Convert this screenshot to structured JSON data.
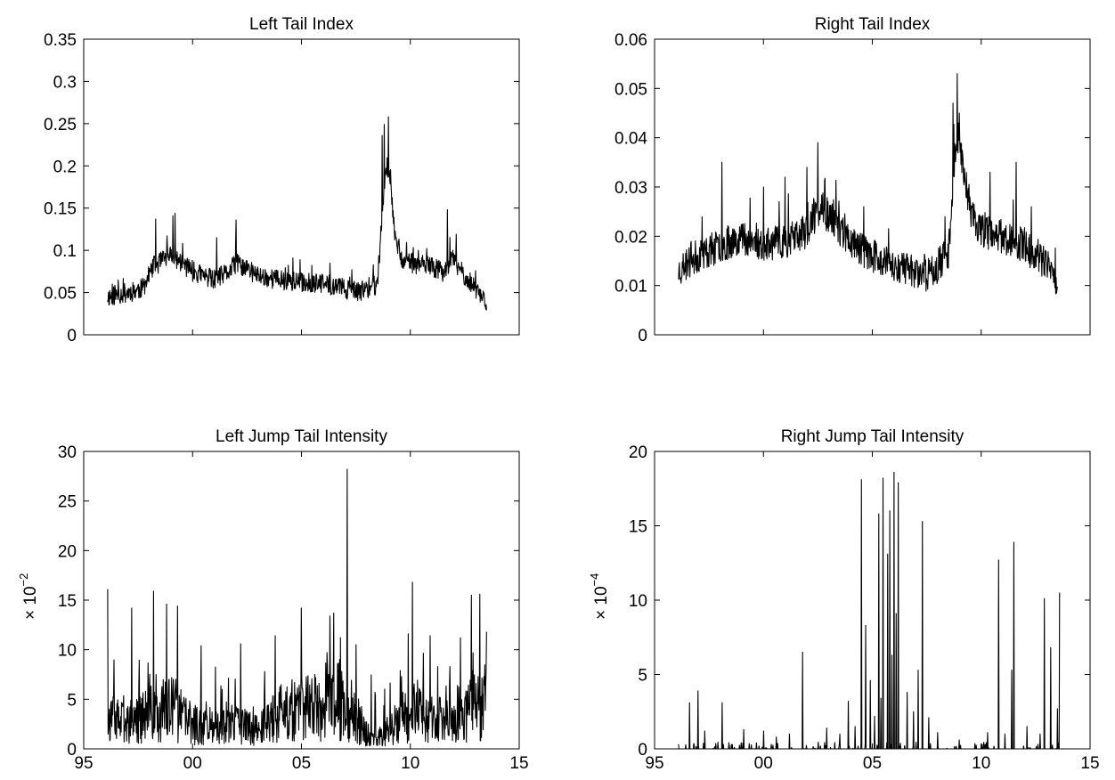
{
  "chart_data": [
    {
      "type": "line",
      "title": "Left Tail Index",
      "xlim": [
        1995,
        2015
      ],
      "ylim": [
        0,
        0.35
      ],
      "yticks": [
        0,
        0.05,
        0.1,
        0.15,
        0.2,
        0.25,
        0.3,
        0.35
      ],
      "ytick_labels": [
        "0",
        "0.05",
        "0.1",
        "0.15",
        "0.2",
        "0.25",
        "0.3",
        "0.35"
      ],
      "xtick_labels": [],
      "ylabel": "",
      "ylabel_exp": "",
      "series": [
        {
          "kind": "noisy",
          "x": [
            1996.1,
            1997.0,
            1997.7,
            1998.2,
            1999.0,
            2000.0,
            2001.0,
            2001.7,
            2002.0,
            2003.0,
            2004.0,
            2005.0,
            2006.0,
            2007.0,
            2007.6,
            2008.0,
            2008.5,
            2008.8,
            2009.0,
            2009.3,
            2009.6,
            2010.0,
            2011.0,
            2011.5,
            2011.9,
            2012.5,
            2013.0,
            2013.5
          ],
          "y": [
            0.045,
            0.05,
            0.055,
            0.08,
            0.095,
            0.075,
            0.065,
            0.075,
            0.085,
            0.07,
            0.065,
            0.062,
            0.06,
            0.055,
            0.05,
            0.055,
            0.06,
            0.18,
            0.2,
            0.12,
            0.09,
            0.085,
            0.08,
            0.075,
            0.09,
            0.07,
            0.055,
            0.04
          ],
          "noise": 0.012,
          "spikes": [
            [
              1998.3,
              0.137
            ],
            [
              1999.1,
              0.141
            ],
            [
              1999.2,
              0.144
            ],
            [
              2001.1,
              0.115
            ],
            [
              2002.0,
              0.136
            ],
            [
              2004.6,
              0.091
            ],
            [
              2006.3,
              0.085
            ],
            [
              2008.7,
              0.236
            ],
            [
              2008.8,
              0.249
            ],
            [
              2009.0,
              0.258
            ],
            [
              2011.7,
              0.148
            ],
            [
              2012.1,
              0.119
            ]
          ],
          "seed": 11
        }
      ]
    },
    {
      "type": "line",
      "title": "Right Tail Index",
      "xlim": [
        1995,
        2015
      ],
      "ylim": [
        0,
        0.06
      ],
      "yticks": [
        0,
        0.01,
        0.02,
        0.03,
        0.04,
        0.05,
        0.06
      ],
      "ytick_labels": [
        "0",
        "0.01",
        "0.02",
        "0.03",
        "0.04",
        "0.05",
        "0.06"
      ],
      "xtick_labels": [],
      "ylabel": "",
      "ylabel_exp": "",
      "series": [
        {
          "kind": "noisy",
          "x": [
            1996.1,
            1997.0,
            1998.0,
            1999.0,
            2000.0,
            2001.0,
            2002.0,
            2002.6,
            2003.0,
            2004.0,
            2005.0,
            2006.0,
            2007.0,
            2007.5,
            2008.0,
            2008.5,
            2008.8,
            2009.0,
            2009.3,
            2009.6,
            2010.0,
            2011.0,
            2012.0,
            2013.0,
            2013.5
          ],
          "y": [
            0.013,
            0.016,
            0.018,
            0.02,
            0.018,
            0.019,
            0.021,
            0.026,
            0.024,
            0.019,
            0.016,
            0.014,
            0.013,
            0.012,
            0.014,
            0.017,
            0.038,
            0.04,
            0.03,
            0.024,
            0.021,
            0.02,
            0.018,
            0.014,
            0.011
          ],
          "noise": 0.0035,
          "spikes": [
            [
              1998.1,
              0.035
            ],
            [
              2000.0,
              0.03
            ],
            [
              2001.0,
              0.032
            ],
            [
              2002.0,
              0.034
            ],
            [
              2002.5,
              0.039
            ],
            [
              2004.6,
              0.026
            ],
            [
              2008.7,
              0.047
            ],
            [
              2008.9,
              0.053
            ],
            [
              2009.0,
              0.045
            ],
            [
              2010.4,
              0.033
            ],
            [
              2011.6,
              0.035
            ],
            [
              2012.3,
              0.026
            ]
          ],
          "seed": 23
        }
      ]
    },
    {
      "type": "line",
      "title": "Left Jump Tail Intensity",
      "xlim": [
        1995,
        2015
      ],
      "ylim": [
        0,
        30
      ],
      "yticks": [
        0,
        5,
        10,
        15,
        20,
        25,
        30
      ],
      "ytick_labels": [
        "0",
        "5",
        "10",
        "15",
        "20",
        "25",
        "30"
      ],
      "xticks": [
        1995,
        2000,
        2005,
        2010,
        2015
      ],
      "xtick_labels": [
        "95",
        "00",
        "05",
        "10",
        "15"
      ],
      "ylabel": "× 10",
      "ylabel_exp": "−2",
      "series": [
        {
          "kind": "jumpy",
          "x": [
            1996.1,
            1997.0,
            1998.0,
            1999.0,
            2000.0,
            2001.0,
            2002.0,
            2003.0,
            2004.0,
            2005.0,
            2006.0,
            2007.0,
            2008.0,
            2008.5,
            2009.0,
            2010.0,
            2011.0,
            2012.0,
            2013.0,
            2013.5
          ],
          "y": [
            3.0,
            2.5,
            3.5,
            4.0,
            2.5,
            2.0,
            2.5,
            2.0,
            3.5,
            4.0,
            4.5,
            5.0,
            1.5,
            1.0,
            2.0,
            4.0,
            3.0,
            2.5,
            4.5,
            5.0
          ],
          "noise": 2.5,
          "spikes": [
            [
              1996.1,
              16.1
            ],
            [
              1997.2,
              14.2
            ],
            [
              1998.2,
              15.9
            ],
            [
              1998.8,
              14.6
            ],
            [
              1999.3,
              14.4
            ],
            [
              2000.4,
              10.4
            ],
            [
              2002.2,
              10.6
            ],
            [
              2003.8,
              11.4
            ],
            [
              2005.0,
              14.2
            ],
            [
              2006.3,
              13.4
            ],
            [
              2007.1,
              28.2
            ],
            [
              2007.5,
              10.5
            ],
            [
              2009.9,
              11.6
            ],
            [
              2010.1,
              16.8
            ],
            [
              2010.9,
              11.4
            ],
            [
              2012.3,
              11.2
            ],
            [
              2012.8,
              15.5
            ],
            [
              2013.2,
              15.6
            ],
            [
              2013.5,
              11.8
            ]
          ],
          "seed": 37
        }
      ]
    },
    {
      "type": "line",
      "title": "Right Jump Tail Intensity",
      "xlim": [
        1995,
        2015
      ],
      "ylim": [
        0,
        20
      ],
      "yticks": [
        0,
        5,
        10,
        15,
        20
      ],
      "ytick_labels": [
        "0",
        "5",
        "10",
        "15",
        "20"
      ],
      "xticks": [
        1995,
        2000,
        2005,
        2010,
        2015
      ],
      "xtick_labels": [
        "95",
        "00",
        "05",
        "10",
        "15"
      ],
      "ylabel": "× 10",
      "ylabel_exp": "−4",
      "series": [
        {
          "kind": "sparse",
          "x": [
            1996.1,
            2013.6
          ],
          "y": [
            0,
            0
          ],
          "noise": 0.15,
          "spikes": [
            [
              1996.1,
              0.3
            ],
            [
              1996.6,
              3.1
            ],
            [
              1997.0,
              3.9
            ],
            [
              1997.3,
              1.2
            ],
            [
              1998.1,
              3.1
            ],
            [
              1999.1,
              1.3
            ],
            [
              2000.0,
              1.2
            ],
            [
              2000.6,
              0.8
            ],
            [
              2001.2,
              1.0
            ],
            [
              2001.8,
              6.5
            ],
            [
              2002.9,
              1.4
            ],
            [
              2003.5,
              1.0
            ],
            [
              2003.9,
              3.2
            ],
            [
              2004.2,
              1.5
            ],
            [
              2004.5,
              18.1
            ],
            [
              2004.7,
              8.3
            ],
            [
              2004.9,
              4.6
            ],
            [
              2005.1,
              2.2
            ],
            [
              2005.3,
              15.8
            ],
            [
              2005.4,
              3.4
            ],
            [
              2005.5,
              18.2
            ],
            [
              2005.7,
              13.1
            ],
            [
              2005.8,
              16.0
            ],
            [
              2005.9,
              6.3
            ],
            [
              2006.0,
              18.6
            ],
            [
              2006.1,
              9.1
            ],
            [
              2006.2,
              17.9
            ],
            [
              2006.6,
              3.8
            ],
            [
              2006.9,
              2.5
            ],
            [
              2007.1,
              5.3
            ],
            [
              2007.3,
              15.3
            ],
            [
              2007.6,
              2.1
            ],
            [
              2008.0,
              1.1
            ],
            [
              2009.0,
              0.6
            ],
            [
              2010.3,
              1.1
            ],
            [
              2010.8,
              12.7
            ],
            [
              2011.1,
              1.0
            ],
            [
              2011.4,
              5.3
            ],
            [
              2011.5,
              13.9
            ],
            [
              2012.1,
              1.5
            ],
            [
              2012.7,
              1.0
            ],
            [
              2012.9,
              10.1
            ],
            [
              2013.2,
              6.8
            ],
            [
              2013.5,
              2.7
            ],
            [
              2013.6,
              10.5
            ]
          ],
          "seed": 51
        }
      ]
    }
  ]
}
